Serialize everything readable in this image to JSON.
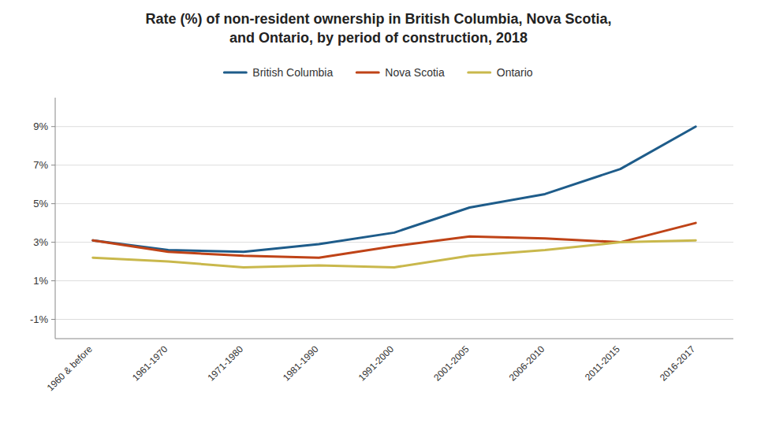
{
  "chart_data": {
    "type": "line",
    "title": "Rate (%) of non-resident ownership in British Columbia, Nova Scotia,\nand Ontario, by period of construction, 2018",
    "categories": [
      "1960 & before",
      "1961-1970",
      "1971-1980",
      "1981-1990",
      "1991-2000",
      "2001-2005",
      "2006-2010",
      "2011-2015",
      "2016-2017"
    ],
    "series": [
      {
        "name": "British Columbia",
        "color": "#1e5c8a",
        "values": [
          3.1,
          2.6,
          2.5,
          2.9,
          3.5,
          4.8,
          5.5,
          6.8,
          9.0
        ]
      },
      {
        "name": "Nova Scotia",
        "color": "#bf4317",
        "values": [
          3.1,
          2.5,
          2.3,
          2.2,
          2.8,
          3.3,
          3.2,
          3.0,
          4.0
        ]
      },
      {
        "name": "Ontario",
        "color": "#c9b84c",
        "values": [
          2.2,
          2.0,
          1.7,
          1.8,
          1.7,
          2.3,
          2.6,
          3.0,
          3.1
        ]
      }
    ],
    "ylim": [
      -2.0,
      10.5
    ],
    "yticks": [
      {
        "value": -1,
        "label": "-1%"
      },
      {
        "value": 1,
        "label": "1%"
      },
      {
        "value": 3,
        "label": "3%"
      },
      {
        "value": 5,
        "label": "5%"
      },
      {
        "value": 7,
        "label": "7%"
      },
      {
        "value": 9,
        "label": "9%"
      }
    ],
    "grid": true,
    "legend": "top"
  }
}
